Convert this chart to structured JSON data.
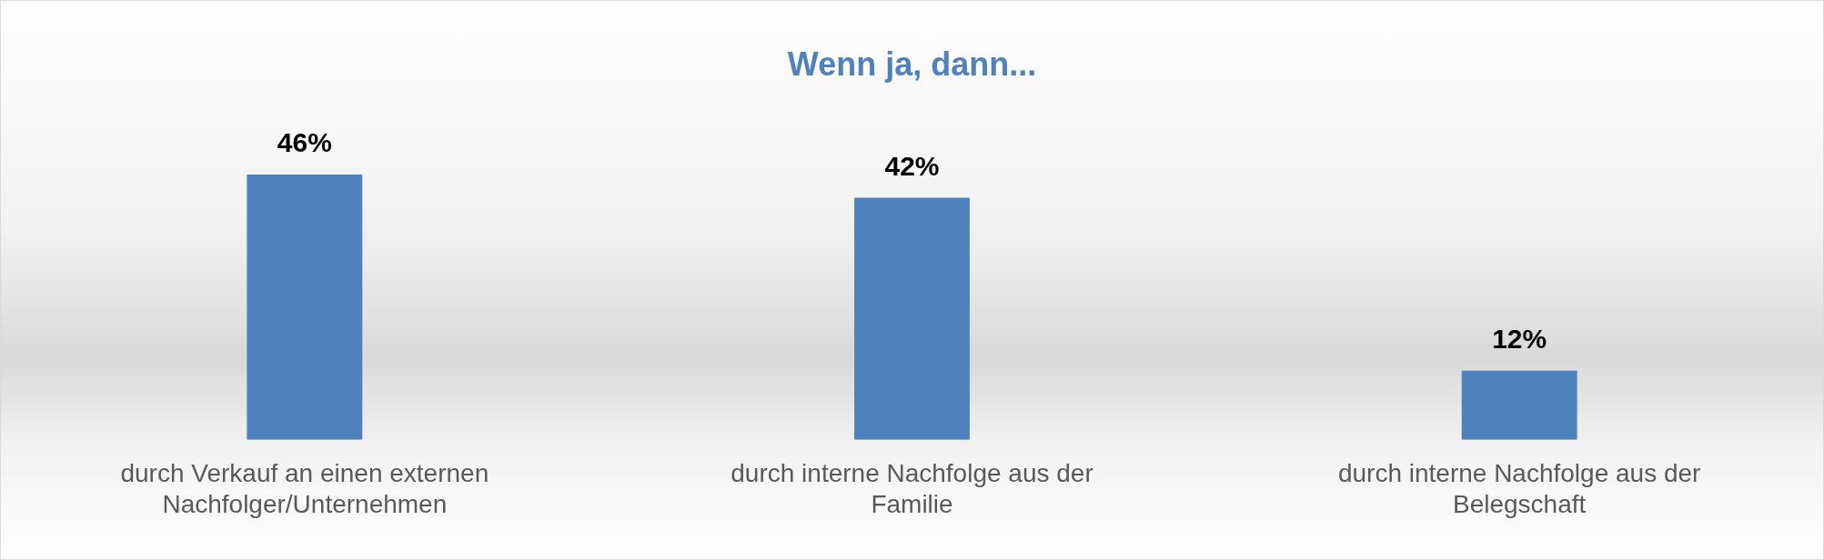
{
  "chart_data": {
    "type": "bar",
    "title": "Wenn ja, dann...",
    "categories": [
      "durch Verkauf an einen externen Nachfolger/Unternehmen",
      "durch interne Nachfolge aus der Familie",
      "durch interne Nachfolge aus der Belegschaft"
    ],
    "values": [
      46,
      42,
      12
    ],
    "value_labels": [
      "46%",
      "42%",
      "12%"
    ],
    "color": "#4f81bd",
    "grid": false,
    "legend": false
  }
}
